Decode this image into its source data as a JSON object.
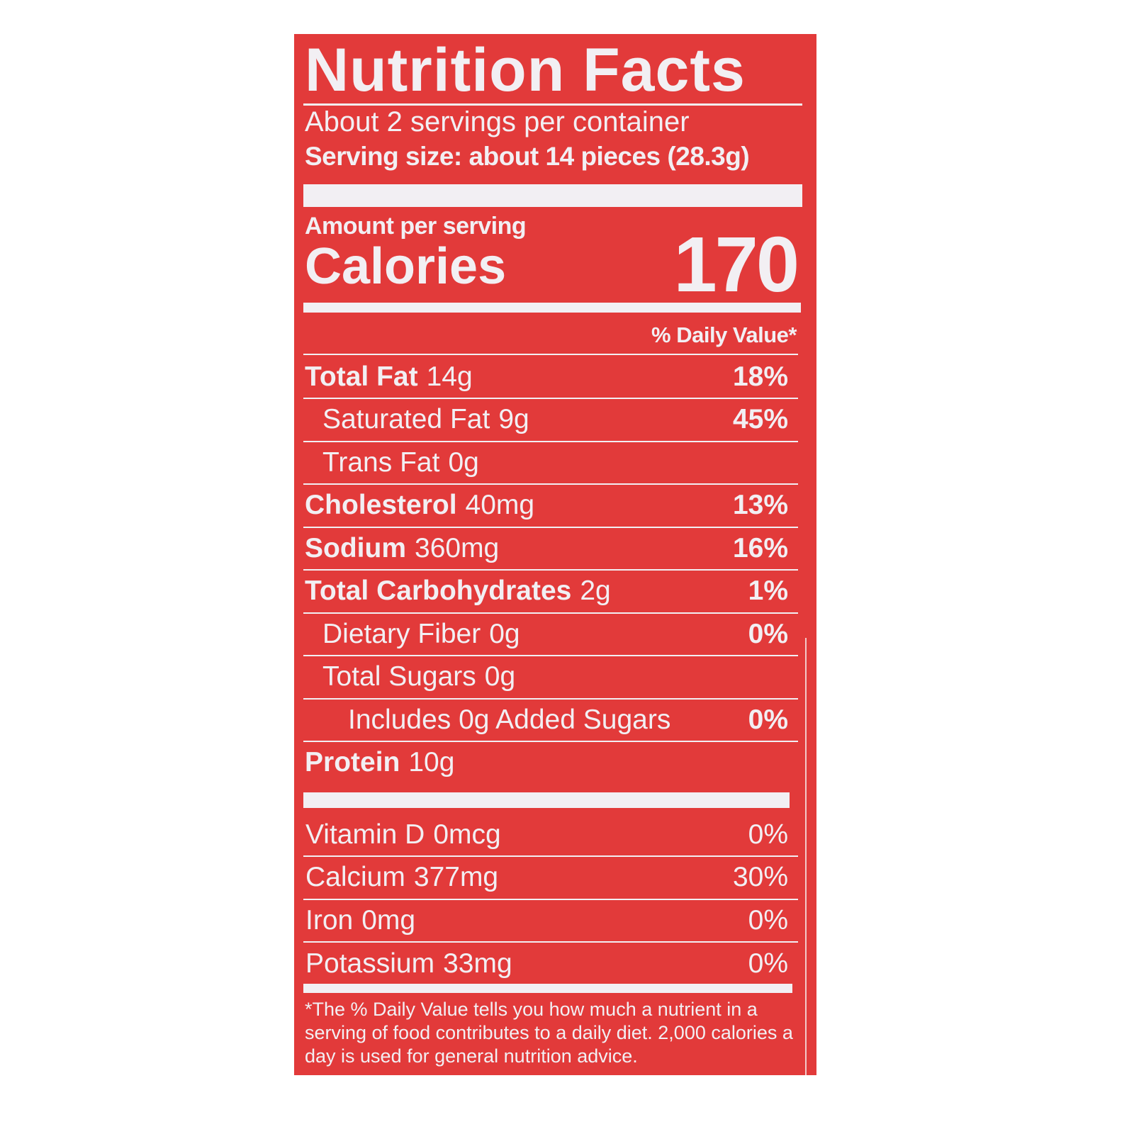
{
  "title": "Nutrition Facts",
  "servings_per_container": "About 2 servings per container",
  "serving_size": "Serving size: about 14 pieces (28.3g)",
  "amount_per_serving": "Amount per serving",
  "calories_label": "Calories",
  "calories_value": "170",
  "daily_value_header": "% Daily Value*",
  "nutrients": [
    {
      "name": "Total Fat",
      "amount": "14g",
      "dv": "18%",
      "bold": true,
      "indent": 0
    },
    {
      "name": "Saturated Fat",
      "amount": "9g",
      "dv": "45%",
      "bold": false,
      "indent": 1
    },
    {
      "name": "Trans Fat",
      "amount": "0g",
      "dv": "",
      "bold": false,
      "indent": 1
    },
    {
      "name": "Cholesterol",
      "amount": "40mg",
      "dv": "13%",
      "bold": true,
      "indent": 0
    },
    {
      "name": "Sodium",
      "amount": "360mg",
      "dv": "16%",
      "bold": true,
      "indent": 0
    },
    {
      "name": "Total Carbohydrates",
      "amount": "2g",
      "dv": "1%",
      "bold": true,
      "indent": 0
    },
    {
      "name": "Dietary Fiber",
      "amount": "0g",
      "dv": "0%",
      "bold": false,
      "indent": 1
    },
    {
      "name": "Total Sugars",
      "amount": "0g",
      "dv": "",
      "bold": false,
      "indent": 1
    },
    {
      "name": "Includes 0g Added Sugars",
      "amount": "",
      "dv": "0%",
      "bold": false,
      "indent": 2
    },
    {
      "name": "Protein",
      "amount": "10g",
      "dv": "",
      "bold": true,
      "indent": 0
    }
  ],
  "vitamins": [
    {
      "name": "Vitamin D",
      "amount": "0mcg",
      "dv": "0%"
    },
    {
      "name": "Calcium",
      "amount": "377mg",
      "dv": "30%"
    },
    {
      "name": "Iron",
      "amount": "0mg",
      "dv": "0%"
    },
    {
      "name": "Potassium",
      "amount": "33mg",
      "dv": "0%"
    }
  ],
  "footnote": "*The % Daily Value tells you how much a nutrient in a serving of food contributes to a daily diet. 2,000 calories a day is used for general nutrition advice.",
  "colors": {
    "background": "#e23a3a",
    "text": "#f2eff3"
  }
}
